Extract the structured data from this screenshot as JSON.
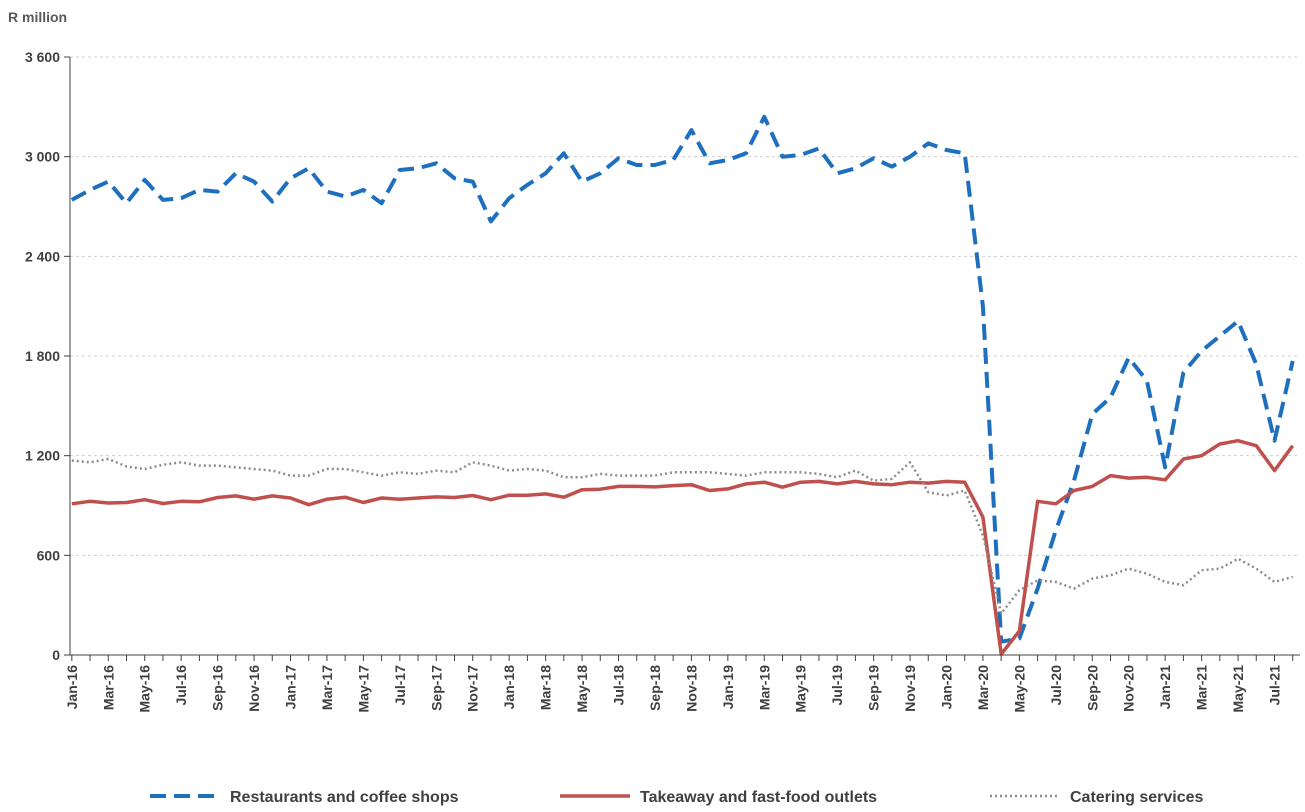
{
  "chart_data": {
    "type": "line",
    "ylabel": "R million",
    "xlabel": "",
    "ylim": [
      0,
      3600
    ],
    "yticks": [
      0,
      600,
      1200,
      1800,
      2400,
      3000,
      3600
    ],
    "ytick_labels": [
      "0",
      "600",
      "1 200",
      "1 800",
      "2 400",
      "3 000",
      "3 600"
    ],
    "grid": "horizontal dashed",
    "legend_position": "bottom",
    "x": [
      "Jan-16",
      "Feb-16",
      "Mar-16",
      "Apr-16",
      "May-16",
      "Jun-16",
      "Jul-16",
      "Aug-16",
      "Sep-16",
      "Oct-16",
      "Nov-16",
      "Dec-16",
      "Jan-17",
      "Feb-17",
      "Mar-17",
      "Apr-17",
      "May-17",
      "Jun-17",
      "Jul-17",
      "Aug-17",
      "Sep-17",
      "Oct-17",
      "Nov-17",
      "Dec-17",
      "Jan-18",
      "Feb-18",
      "Mar-18",
      "Apr-18",
      "May-18",
      "Jun-18",
      "Jul-18",
      "Aug-18",
      "Sep-18",
      "Oct-18",
      "Nov-18",
      "Dec-18",
      "Jan-19",
      "Feb-19",
      "Mar-19",
      "Apr-19",
      "May-19",
      "Jun-19",
      "Jul-19",
      "Aug-19",
      "Sep-19",
      "Oct-19",
      "Nov-19",
      "Dec-19",
      "Jan-20",
      "Feb-20",
      "Mar-20",
      "Apr-20",
      "May-20",
      "Jun-20",
      "Jul-20",
      "Aug-20",
      "Sep-20",
      "Oct-20",
      "Nov-20",
      "Dec-20",
      "Jan-21",
      "Feb-21",
      "Mar-21",
      "Apr-21",
      "May-21",
      "Jun-21",
      "Jul-21",
      "Aug-21"
    ],
    "x_tick_labels": [
      "Jan-16",
      "Mar-16",
      "May-16",
      "Jul-16",
      "Sep-16",
      "Nov-16",
      "Jan-17",
      "Mar-17",
      "May-17",
      "Jul-17",
      "Sep-17",
      "Nov-17",
      "Jan-18",
      "Mar-18",
      "May-18",
      "Jul-18",
      "Sep-18",
      "Nov-18",
      "Jan-19",
      "Mar-19",
      "May-19",
      "Jul-19",
      "Sep-19",
      "Nov-19",
      "Jan-20",
      "Mar-20",
      "May-20",
      "Jul-20",
      "Sep-20",
      "Nov-20",
      "Jan-21",
      "Mar-21",
      "May-21",
      "Jul-21"
    ],
    "series": [
      {
        "name": "Restaurants and coffee shops",
        "color": "#1f6fbf",
        "style": "dashed",
        "values": [
          2740,
          2800,
          2850,
          2720,
          2860,
          2740,
          2750,
          2800,
          2790,
          2900,
          2850,
          2730,
          2870,
          2930,
          2790,
          2760,
          2800,
          2720,
          2920,
          2930,
          2960,
          2870,
          2850,
          2610,
          2750,
          2830,
          2900,
          3020,
          2850,
          2900,
          2990,
          2950,
          2950,
          2980,
          3160,
          2960,
          2980,
          3020,
          3240,
          3000,
          3010,
          3050,
          2900,
          2930,
          2990,
          2940,
          3000,
          3080,
          3040,
          3020,
          2100,
          80,
          100,
          400,
          750,
          1050,
          1450,
          1550,
          1790,
          1650,
          1130,
          1700,
          1830,
          1920,
          2010,
          1750,
          1290,
          1770
        ]
      },
      {
        "name": "Takeaway and fast-food outlets",
        "color": "#c0504d",
        "style": "solid",
        "values": [
          910,
          925,
          915,
          918,
          935,
          912,
          925,
          922,
          948,
          958,
          938,
          958,
          945,
          905,
          938,
          950,
          918,
          945,
          938,
          945,
          952,
          948,
          960,
          935,
          962,
          962,
          970,
          950,
          995,
          998,
          1015,
          1015,
          1012,
          1020,
          1025,
          990,
          1000,
          1030,
          1040,
          1010,
          1040,
          1045,
          1030,
          1045,
          1030,
          1025,
          1040,
          1035,
          1045,
          1040,
          830,
          5,
          145,
          925,
          910,
          990,
          1015,
          1080,
          1065,
          1070,
          1055,
          1180,
          1200,
          1270,
          1290,
          1260,
          1110,
          1260
        ]
      },
      {
        "name": "Catering services",
        "color": "#8c8c8c",
        "style": "dotted",
        "values": [
          1170,
          1160,
          1180,
          1135,
          1120,
          1145,
          1160,
          1140,
          1140,
          1130,
          1120,
          1110,
          1080,
          1080,
          1120,
          1120,
          1100,
          1080,
          1100,
          1090,
          1110,
          1100,
          1160,
          1140,
          1110,
          1120,
          1110,
          1070,
          1070,
          1090,
          1080,
          1080,
          1080,
          1100,
          1100,
          1100,
          1090,
          1080,
          1100,
          1100,
          1100,
          1090,
          1070,
          1110,
          1050,
          1060,
          1160,
          980,
          960,
          990,
          720,
          250,
          390,
          450,
          440,
          400,
          460,
          480,
          520,
          490,
          440,
          420,
          510,
          520,
          580,
          520,
          440,
          470
        ]
      }
    ]
  }
}
